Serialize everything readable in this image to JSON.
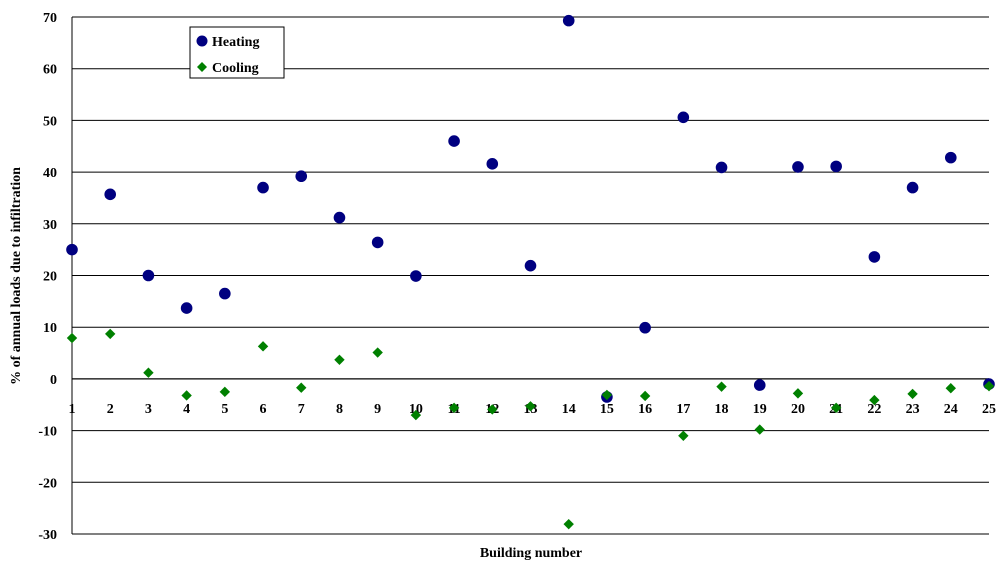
{
  "chart_data": {
    "type": "scatter",
    "title": "",
    "xlabel": "Building number",
    "ylabel": "% of annual loads due to infiltration",
    "ylim": [
      -30,
      70
    ],
    "y_ticks": [
      -30,
      -20,
      -10,
      0,
      10,
      20,
      30,
      40,
      50,
      60,
      70
    ],
    "x": [
      1,
      2,
      3,
      4,
      5,
      6,
      7,
      8,
      9,
      10,
      11,
      12,
      13,
      14,
      15,
      16,
      17,
      18,
      19,
      20,
      21,
      22,
      23,
      24,
      25
    ],
    "grid": "horizontal",
    "legend_position": "top-left",
    "series": [
      {
        "name": "Heating",
        "marker": "circle",
        "color": "#000080",
        "values": [
          25,
          35.7,
          20,
          13.7,
          16.5,
          37,
          39.2,
          31.2,
          26.4,
          19.9,
          46,
          41.6,
          21.9,
          69.3,
          -3.5,
          9.9,
          50.6,
          40.9,
          -1.2,
          41,
          41.1,
          23.6,
          37,
          42.8,
          -1
        ]
      },
      {
        "name": "Cooling",
        "marker": "diamond",
        "color": "#008000",
        "values": [
          7.9,
          8.7,
          1.2,
          -3.2,
          -2.5,
          6.3,
          -1.7,
          3.7,
          5.1,
          -7,
          -5.6,
          -5.9,
          -5.3,
          -28.1,
          -3.1,
          -3.3,
          -11,
          -1.5,
          -9.8,
          -2.8,
          -5.6,
          -4.1,
          -2.9,
          -1.8,
          -1.4
        ]
      }
    ]
  }
}
